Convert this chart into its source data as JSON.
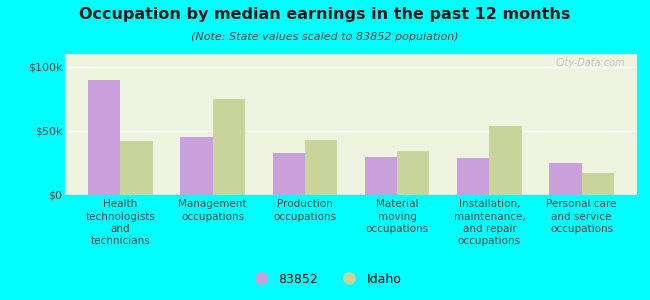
{
  "title": "Occupation by median earnings in the past 12 months",
  "subtitle": "(Note: State values scaled to 83852 population)",
  "categories": [
    "Health\ntechnologists\nand\ntechnicians",
    "Management\noccupations",
    "Production\noccupations",
    "Material\nmoving\noccupations",
    "Installation,\nmaintenance,\nand repair\noccupations",
    "Personal care\nand service\noccupations"
  ],
  "values_83852": [
    90000,
    45000,
    33000,
    30000,
    29000,
    25000
  ],
  "values_idaho": [
    42000,
    75000,
    43000,
    34000,
    54000,
    17000
  ],
  "color_83852": "#c9a0dc",
  "color_idaho": "#c8d49a",
  "bar_width": 0.35,
  "ylim": [
    0,
    110000
  ],
  "yticks": [
    0,
    50000,
    100000
  ],
  "ytick_labels": [
    "$0",
    "$50k",
    "$100k"
  ],
  "plot_bg_color": "#eef3e0",
  "outer_background": "#00ffff",
  "title_color": "#1a1a1a",
  "subtitle_color": "#444444",
  "tick_color": "#444444",
  "legend_label_83852": "83852",
  "legend_label_idaho": "Idaho",
  "watermark": "City-Data.com"
}
